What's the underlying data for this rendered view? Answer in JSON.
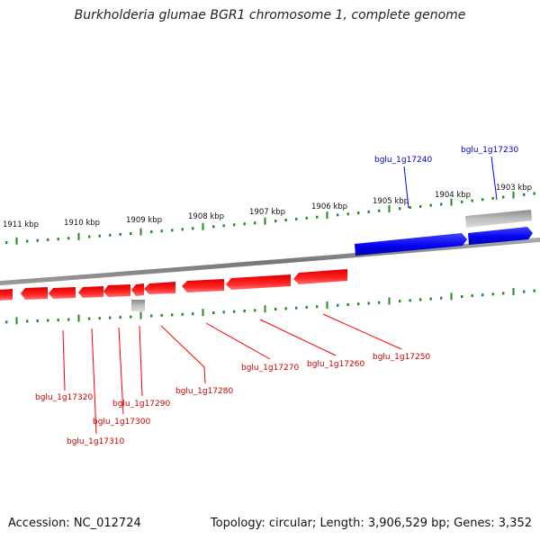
{
  "title": "Burkholderia glumae BGR1 chromosome 1, complete genome",
  "colors": {
    "forward": "#0000ff",
    "reverse": "#ff0000",
    "other": "#bdbdbd",
    "tick": "#228b22",
    "backbone": "#888888"
  },
  "scale": [
    {
      "label": "1911 kbp",
      "pos": 1911
    },
    {
      "label": "1910 kbp",
      "pos": 1910
    },
    {
      "label": "1909 kbp",
      "pos": 1909
    },
    {
      "label": "1908 kbp",
      "pos": 1908
    },
    {
      "label": "1907 kbp",
      "pos": 1907
    },
    {
      "label": "1906 kbp",
      "pos": 1906
    },
    {
      "label": "1905 kbp",
      "pos": 1905
    },
    {
      "label": "1904 kbp",
      "pos": 1904
    },
    {
      "label": "1903 kbp",
      "pos": 1903
    }
  ],
  "forward_genes": [
    {
      "label": "bglu_1g17240"
    },
    {
      "label": "bglu_1g17230"
    }
  ],
  "reverse_genes": [
    {
      "label": "bglu_1g17320"
    },
    {
      "label": "bglu_1g17310"
    },
    {
      "label": "bglu_1g17300"
    },
    {
      "label": "bglu_1g17290"
    },
    {
      "label": "bglu_1g17280"
    },
    {
      "label": "bglu_1g17270"
    },
    {
      "label": "bglu_1g17260"
    },
    {
      "label": "bglu_1g17250"
    }
  ],
  "footer": {
    "accession": "Accession: NC_012724",
    "summary": "Topology: circular; Length: 3,906,529 bp; Genes: 3,352"
  }
}
